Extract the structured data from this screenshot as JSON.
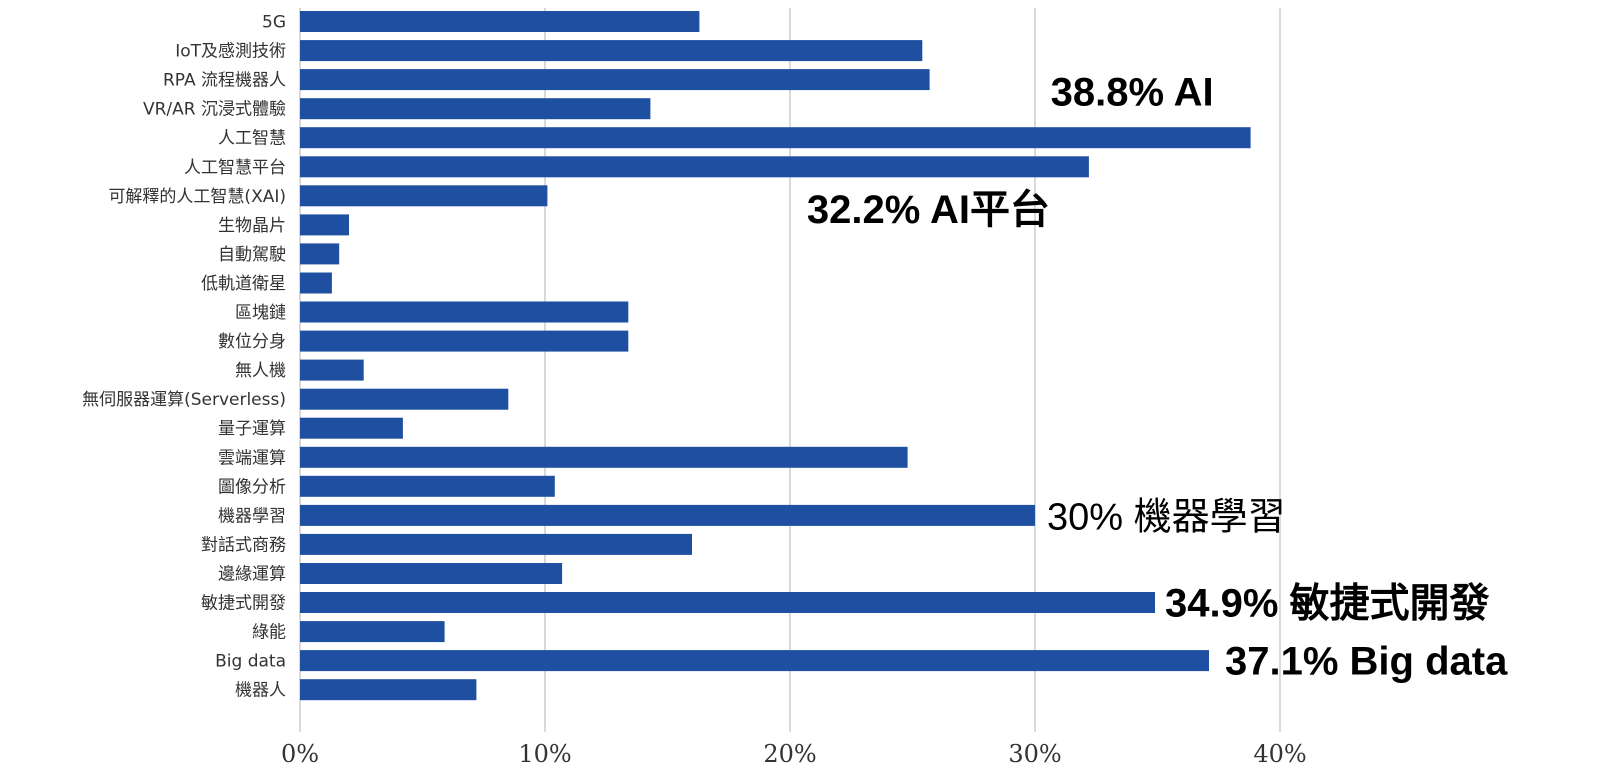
{
  "chart_data": {
    "type": "bar",
    "orientation": "horizontal",
    "categories": [
      "5G",
      "IoT及感測技術",
      "RPA 流程機器人",
      "VR/AR 沉浸式體驗",
      "人工智慧",
      "人工智慧平台",
      "可解釋的人工智慧(XAI)",
      "生物晶片",
      "自動駕駛",
      "低軌道衛星",
      "區塊鏈",
      "數位分身",
      "無人機",
      "無伺服器運算(Serverless)",
      "量子運算",
      "雲端運算",
      "圖像分析",
      "機器學習",
      "對話式商務",
      "邊緣運算",
      "敏捷式開發",
      "綠能",
      "Big data",
      "機器人"
    ],
    "values": [
      16.3,
      25.4,
      25.7,
      14.3,
      38.8,
      32.2,
      10.1,
      2.0,
      1.6,
      1.3,
      13.4,
      13.4,
      2.6,
      8.5,
      4.2,
      24.8,
      10.4,
      30.0,
      16.0,
      10.7,
      34.9,
      5.9,
      37.1,
      7.2
    ],
    "xlim": [
      0,
      40
    ],
    "x_ticks": [
      "0%",
      "10%",
      "20%",
      "30%",
      "40%"
    ],
    "grid": "vertical",
    "bar_color": "#1f4fa0",
    "title": "",
    "xlabel": "",
    "ylabel": "",
    "annotations": [
      {
        "text": "38.8%  AI",
        "category": "人工智慧",
        "style": "bold"
      },
      {
        "text": "32.2% AI平台",
        "category": "人工智慧平台",
        "style": "bold"
      },
      {
        "text": "30% 機器學習",
        "category": "機器學習",
        "style": "regular"
      },
      {
        "text": "34.9% 敏捷式開發",
        "category": "敏捷式開發",
        "style": "bold"
      },
      {
        "text": "37.1%  Big data",
        "category": "Big data",
        "style": "bold"
      }
    ]
  }
}
